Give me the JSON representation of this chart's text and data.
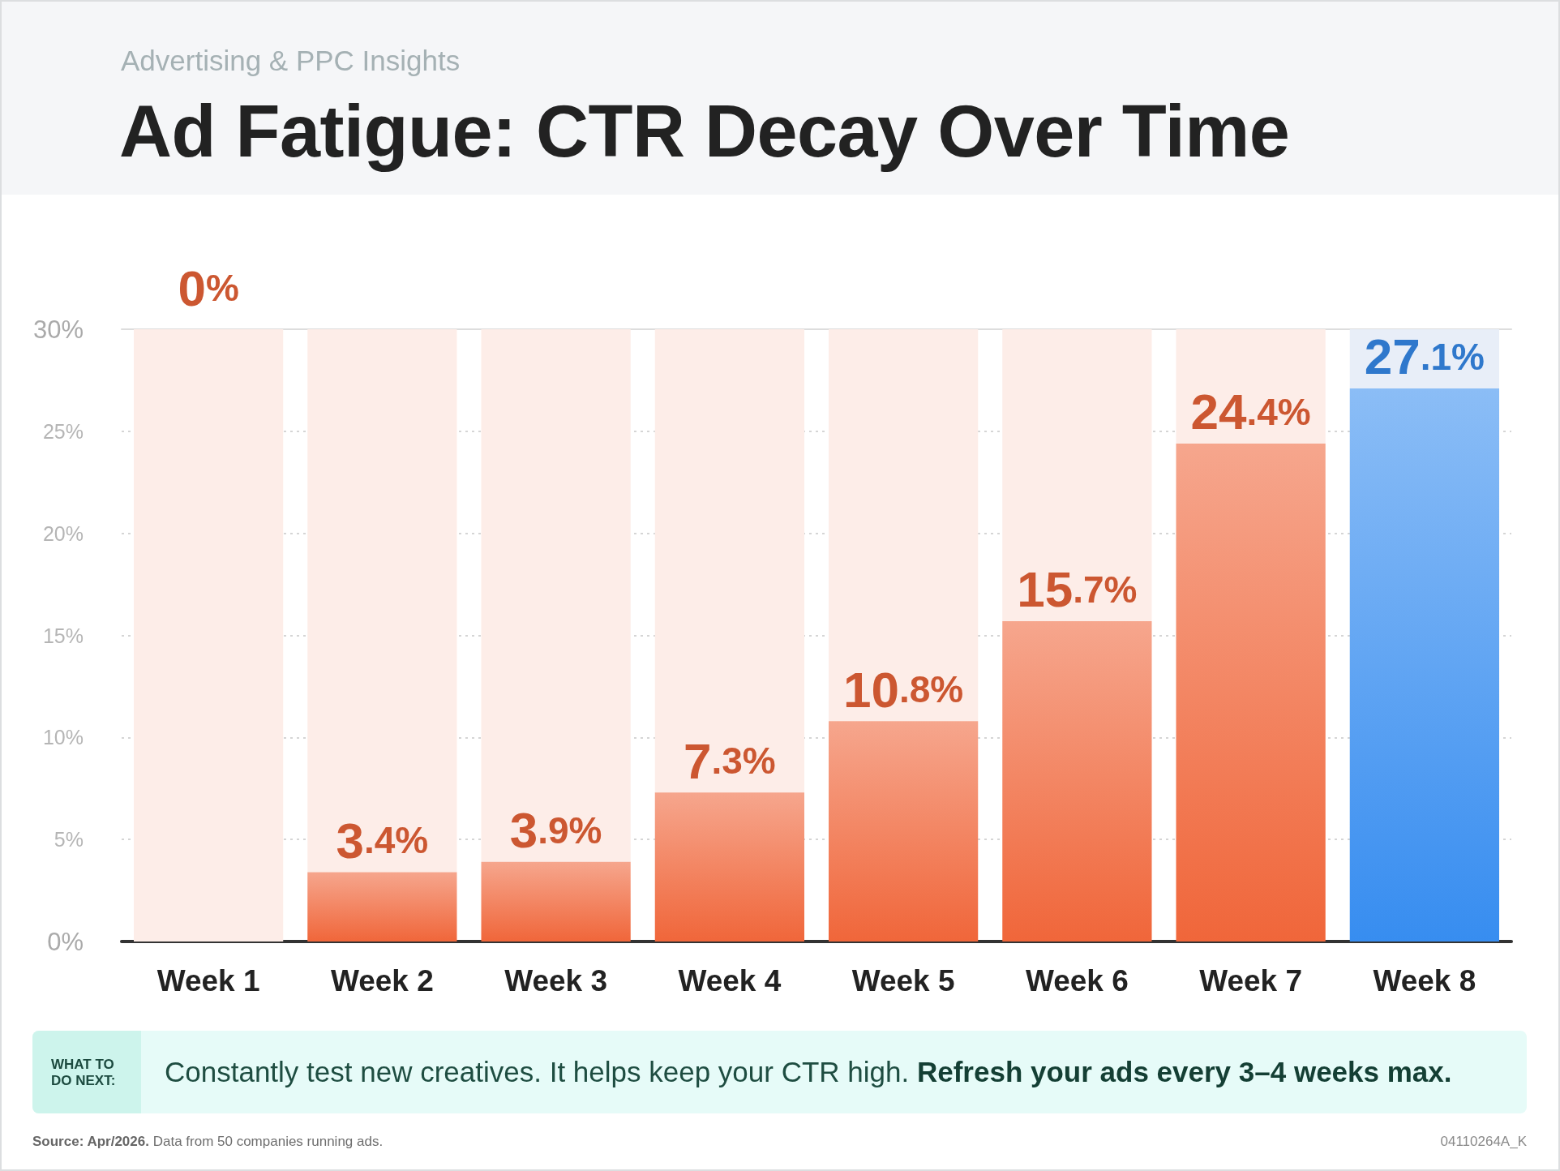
{
  "chart_data": {
    "type": "bar",
    "title": "Ad Fatigue: CTR Decay Over Time",
    "subtitle": "Advertising & PPC Insights",
    "categories": [
      "Week 1",
      "Week 2",
      "Week 3",
      "Week 4",
      "Week 5",
      "Week 6",
      "Week 7",
      "Week 8"
    ],
    "stacked": true,
    "series": [
      {
        "values": [
          0,
          3.4,
          3.9,
          7.3,
          10.8,
          15.7,
          24.4,
          27.1
        ],
        "colors": [
          "#f0663a",
          "#f0663a",
          "#f0663a",
          "#f0663a",
          "#f0663a",
          "#f0663a",
          "#f0663a",
          "#378df0"
        ],
        "value_labels": [
          "0%",
          "3.4%",
          "3.9%",
          "7.3%",
          "10.8%",
          "15.7%",
          "24.4%",
          "27.1%"
        ]
      },
      {
        "values": [
          30,
          26.6,
          26.1,
          22.7,
          19.2,
          14.3,
          5.6,
          2.9
        ],
        "colors": [
          "#fdede8",
          "#fdede8",
          "#fdede8",
          "#fdede8",
          "#fdede8",
          "#fdede8",
          "#fdede8",
          "#e8eef8"
        ]
      }
    ],
    "ylim": [
      0,
      30
    ],
    "yticks": [
      {
        "value": 0,
        "label": "0%"
      },
      {
        "value": 5,
        "label": "5%"
      },
      {
        "value": 10,
        "label": "10%"
      },
      {
        "value": 15,
        "label": "15%"
      },
      {
        "value": 20,
        "label": "20%"
      },
      {
        "value": 25,
        "label": "25%"
      },
      {
        "value": 30,
        "label": "30%"
      }
    ],
    "grid": "y",
    "annotations": [
      "WHAT TO DO NEXT:",
      "Constantly test new creatives. It helps keep your CTR high.",
      "Refresh your ads every 3–4 weeks max.",
      "Source: Apr/2026.",
      "Data from 50 companies running ads.",
      "04110264A_K"
    ]
  }
}
